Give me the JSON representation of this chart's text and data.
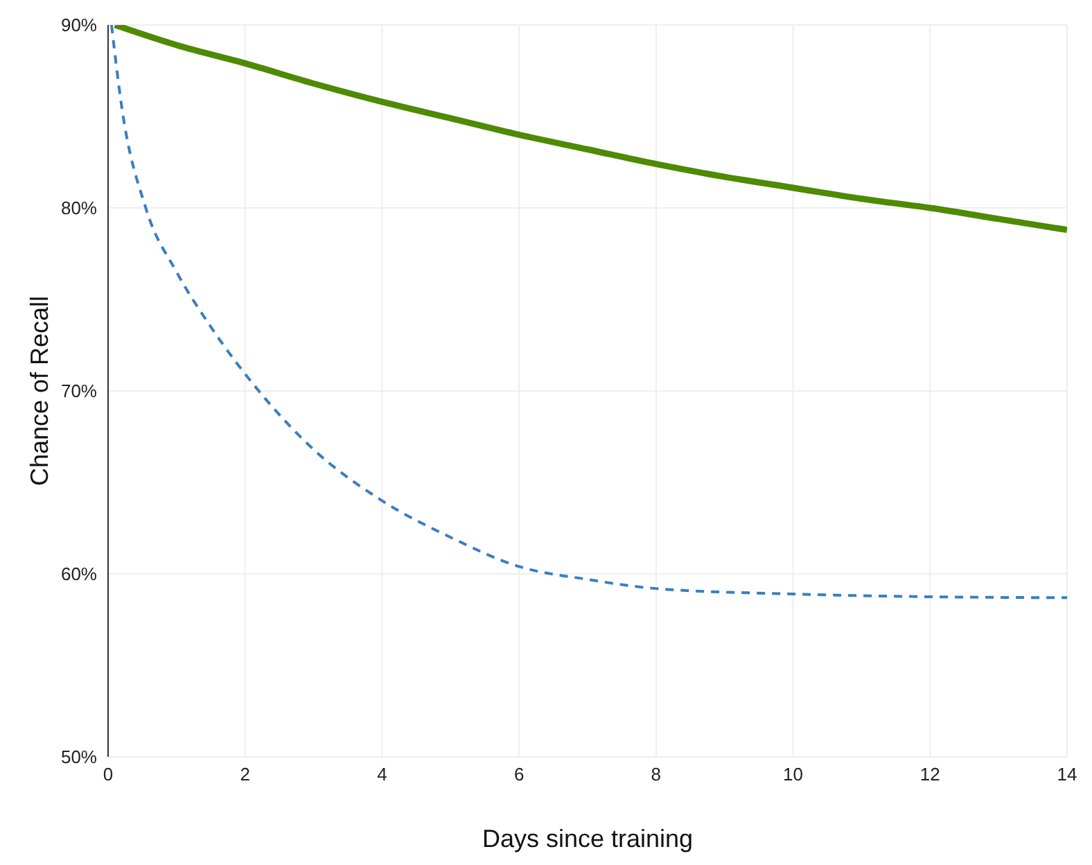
{
  "chart_data": {
    "type": "line",
    "xlabel": "Days since training",
    "ylabel": "Chance of Recall",
    "xlim": [
      0,
      14
    ],
    "xticks": [
      0,
      2,
      4,
      6,
      8,
      10,
      12,
      14
    ],
    "ylim": [
      50,
      90
    ],
    "yticks": [
      {
        "value": 50,
        "label": "50%"
      },
      {
        "value": 60,
        "label": "60%"
      },
      {
        "value": 70,
        "label": "70%"
      },
      {
        "value": 80,
        "label": "80%"
      },
      {
        "value": 90,
        "label": "90%"
      }
    ],
    "grid": true,
    "marker": "none",
    "series": [
      {
        "color": "#4e8a03",
        "line_style": "solid",
        "x": [
          0.1,
          1,
          2,
          3,
          4,
          5,
          6,
          7,
          8,
          9,
          10,
          11,
          12,
          13,
          14
        ],
        "values": [
          90,
          88.9,
          87.9,
          86.8,
          85.8,
          84.9,
          84,
          83.2,
          82.4,
          81.7,
          81.1,
          80.5,
          80,
          79.4,
          78.8
        ]
      },
      {
        "color": "#3a7ebf",
        "line_style": "dashed",
        "x": [
          0.05,
          0.2,
          0.55,
          1,
          1.5,
          2.2,
          3,
          4,
          5,
          6,
          7,
          8,
          10,
          12,
          14
        ],
        "values": [
          90,
          85.5,
          80,
          76.5,
          73.5,
          70,
          66.8,
          64,
          62,
          60.4,
          59.7,
          59.2,
          58.9,
          58.75,
          58.7
        ]
      }
    ]
  }
}
